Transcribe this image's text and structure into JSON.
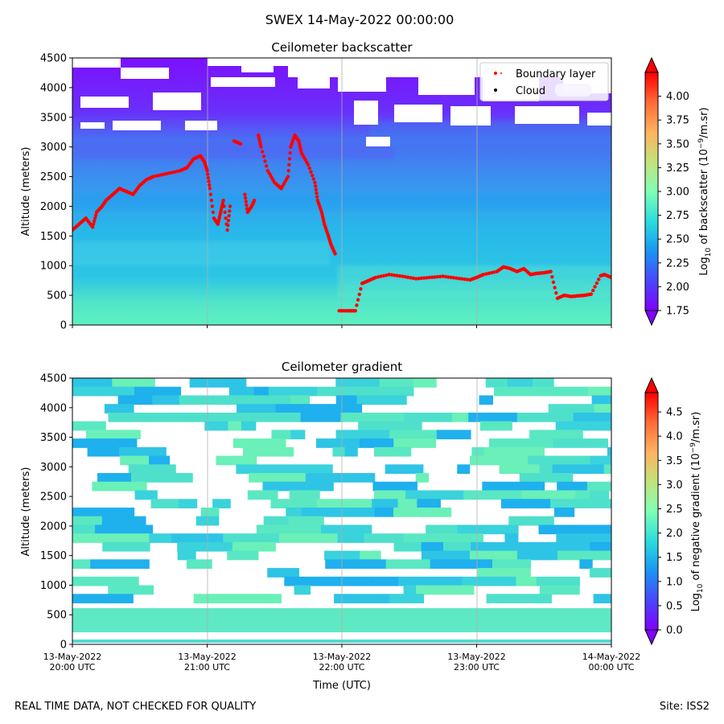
{
  "suptitle": "SWEX 14-May-2022 00:00:00",
  "footer": {
    "left": "REAL TIME DATA, NOT CHECKED FOR QUALITY",
    "right": "Site: ISS2"
  },
  "colors": {
    "no_data": "#ffffff",
    "boundary_layer": "#ff0000",
    "cloud": "#000000",
    "colormap": "rainbow"
  },
  "chart_data": [
    {
      "type": "heatmap",
      "title": "Ceilometer backscatter",
      "xlabel": "",
      "ylabel": "Altitude (meters)",
      "ylim": [
        0,
        4500
      ],
      "yticks": [
        0,
        500,
        1000,
        1500,
        2000,
        2500,
        3000,
        3500,
        4000,
        4500
      ],
      "xlim_hours": [
        20,
        24
      ],
      "xticks_hours": [
        20,
        21,
        22,
        23,
        24
      ],
      "xticklabels": [
        "",
        "",
        "",
        "",
        ""
      ],
      "grid": "vertical",
      "colorbar": {
        "label": "Log10 of backscatter (10^-9/m.sr)",
        "label_parts": [
          "Log",
          "10",
          " of backscatter (10",
          "−9",
          "/m.sr)"
        ],
        "vmin": 1.75,
        "vmax": 4.25,
        "ticks": [
          "1.75",
          "2.00",
          "2.25",
          "2.50",
          "2.75",
          "3.00",
          "3.25",
          "3.50",
          "3.75",
          "4.00"
        ],
        "extend": "both"
      },
      "field_description": "Values ~2.6-2.7 near surface decreasing to ~1.8 above 3500 m; no data (white) patches above 3300 m.",
      "legend": {
        "location": "top-right",
        "entries": [
          {
            "label": "Boundary layer",
            "marker": "dot",
            "color": "#ff0000"
          },
          {
            "label": "Cloud",
            "marker": "dot",
            "color": "#000000"
          }
        ]
      },
      "series": [
        {
          "name": "Boundary layer",
          "points": [
            [
              20.0,
              1600
            ],
            [
              20.05,
              1700
            ],
            [
              20.1,
              1800
            ],
            [
              20.15,
              1650
            ],
            [
              20.18,
              1900
            ],
            [
              20.22,
              2000
            ],
            [
              20.25,
              2100
            ],
            [
              20.3,
              2200
            ],
            [
              20.35,
              2300
            ],
            [
              20.4,
              2250
            ],
            [
              20.45,
              2200
            ],
            [
              20.5,
              2350
            ],
            [
              20.55,
              2450
            ],
            [
              20.6,
              2500
            ],
            [
              20.7,
              2550
            ],
            [
              20.8,
              2600
            ],
            [
              20.85,
              2650
            ],
            [
              20.9,
              2800
            ],
            [
              20.95,
              2850
            ],
            [
              20.98,
              2750
            ],
            [
              21.0,
              2600
            ],
            [
              21.02,
              2300
            ],
            [
              21.05,
              1800
            ],
            [
              21.08,
              1700
            ],
            [
              21.1,
              1900
            ],
            [
              21.12,
              2100
            ],
            [
              21.15,
              1600
            ],
            [
              21.17,
              2000
            ],
            [
              21.2,
              3100
            ],
            [
              21.25,
              3050
            ],
            [
              21.28,
              2200
            ],
            [
              21.3,
              1900
            ],
            [
              21.33,
              2000
            ],
            [
              21.35,
              2100
            ],
            [
              21.38,
              3200
            ],
            [
              21.4,
              3000
            ],
            [
              21.45,
              2600
            ],
            [
              21.5,
              2400
            ],
            [
              21.55,
              2300
            ],
            [
              21.6,
              2500
            ],
            [
              21.62,
              3000
            ],
            [
              21.65,
              3200
            ],
            [
              21.68,
              3100
            ],
            [
              21.7,
              2900
            ],
            [
              21.75,
              2700
            ],
            [
              21.8,
              2400
            ],
            [
              21.82,
              2100
            ],
            [
              21.85,
              1900
            ],
            [
              21.87,
              1700
            ],
            [
              21.9,
              1500
            ],
            [
              21.92,
              1350
            ],
            [
              21.95,
              1200
            ],
            [
              21.98,
              240
            ],
            [
              22.05,
              240
            ],
            [
              22.1,
              240
            ],
            [
              22.15,
              700
            ],
            [
              22.2,
              750
            ],
            [
              22.25,
              800
            ],
            [
              22.35,
              850
            ],
            [
              22.45,
              820
            ],
            [
              22.55,
              780
            ],
            [
              22.65,
              800
            ],
            [
              22.75,
              820
            ],
            [
              22.85,
              790
            ],
            [
              22.95,
              760
            ],
            [
              23.0,
              800
            ],
            [
              23.05,
              850
            ],
            [
              23.15,
              900
            ],
            [
              23.2,
              980
            ],
            [
              23.25,
              950
            ],
            [
              23.3,
              900
            ],
            [
              23.35,
              950
            ],
            [
              23.4,
              850
            ],
            [
              23.45,
              870
            ],
            [
              23.5,
              880
            ],
            [
              23.55,
              900
            ],
            [
              23.6,
              450
            ],
            [
              23.65,
              500
            ],
            [
              23.7,
              480
            ],
            [
              23.75,
              490
            ],
            [
              23.8,
              500
            ],
            [
              23.85,
              520
            ],
            [
              23.92,
              830
            ],
            [
              23.95,
              850
            ],
            [
              24.0,
              800
            ]
          ]
        },
        {
          "name": "Cloud",
          "points": []
        }
      ]
    },
    {
      "type": "heatmap",
      "title": "Ceilometer gradient",
      "xlabel": "Time (UTC)",
      "ylabel": "Altitude (meters)",
      "ylim": [
        0,
        4500
      ],
      "yticks": [
        0,
        500,
        1000,
        1500,
        2000,
        2500,
        3000,
        3500,
        4000,
        4500
      ],
      "xlim_hours": [
        20,
        24
      ],
      "xticks_hours": [
        20,
        21,
        22,
        23,
        24
      ],
      "xticklabels": [
        "13-May-2022\n20:00 UTC",
        "13-May-2022\n21:00 UTC",
        "13-May-2022\n22:00 UTC",
        "13-May-2022\n23:00 UTC",
        "14-May-2022\n00:00 UTC"
      ],
      "grid": "vertical",
      "colorbar": {
        "label": "Log10 of negative gradient (10^-9/m.sr)",
        "label_parts": [
          "Log",
          "10",
          " of negative gradient (10",
          "−9",
          "/m.sr)"
        ],
        "vmin": 0.0,
        "vmax": 4.9,
        "ticks": [
          "0.0",
          "0.5",
          "1.0",
          "1.5",
          "2.0",
          "2.5",
          "3.0",
          "3.5",
          "4.0",
          "4.5"
        ],
        "extend": "both"
      },
      "field_description": "Values ~1.2-2.5 in horizontal bands, interleaved with white no-data gaps throughout the column."
    }
  ]
}
